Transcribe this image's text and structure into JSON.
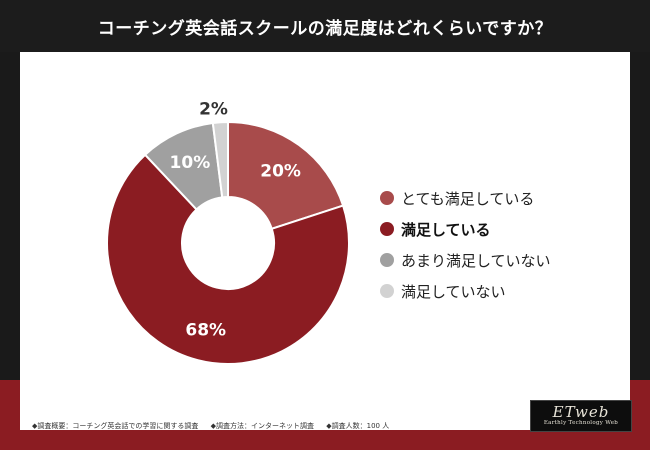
{
  "header": {
    "title": "コーチング英会話スクールの満足度はどれくらいですか？"
  },
  "chart_data": {
    "type": "pie",
    "donut": true,
    "title": "コーチング英会話スクールの満足度はどれくらいですか？",
    "unit": "%",
    "legend_position": "right",
    "categories": [
      "とても満足している",
      "満足している",
      "あまり満足していない",
      "満足していない"
    ],
    "values": [
      20,
      68,
      10,
      2
    ],
    "colors": [
      "#a84b4b",
      "#8b1c22",
      "#a0a0a0",
      "#d2d2d2"
    ],
    "highlighted": "満足している"
  },
  "footnote": {
    "items": [
      "◆調査概要：コーチング英会話での学習に関する調査",
      "◆調査方法：インターネット調査",
      "◆調査人数：100 人"
    ]
  },
  "logo": {
    "main": "ETweb",
    "sub": "Earthly Technology Web"
  }
}
